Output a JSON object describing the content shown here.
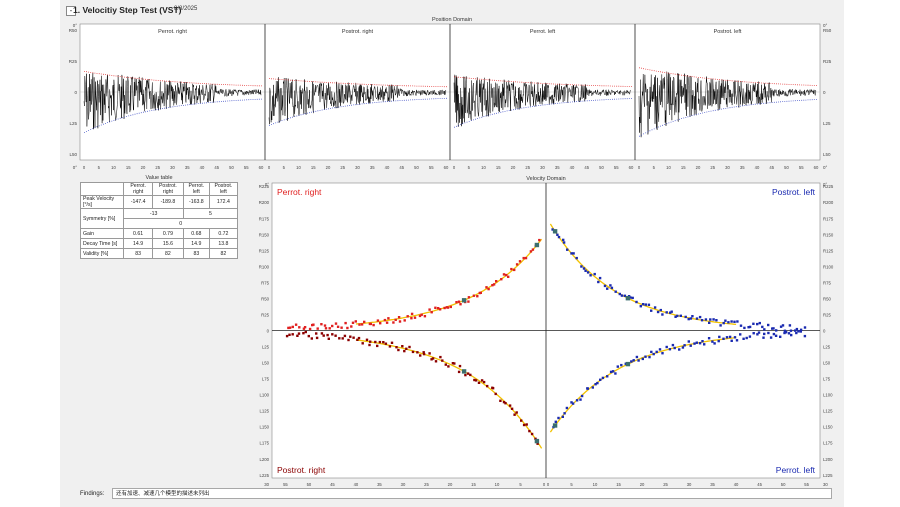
{
  "header": {
    "collapse_glyph": "-",
    "title": "1. Velocitiy Step Test (VST)",
    "date": "8/8/2025"
  },
  "position_domain": {
    "title": "Position Domain",
    "top_label": "0°",
    "bottom_label": "0°",
    "y_labels": [
      "R50",
      "R25",
      "0",
      "L25",
      "L50"
    ],
    "x_ticks": [
      "0",
      "5",
      "10",
      "15",
      "20",
      "25",
      "30",
      "35",
      "40",
      "45",
      "50",
      "55",
      "60"
    ],
    "panels": [
      "Perrot. right",
      "Postrot. right",
      "Perrot. left",
      "Postrot. left"
    ],
    "y_range": [
      -50,
      50
    ],
    "x_range": [
      0,
      60
    ]
  },
  "value_table": {
    "title": "Value table",
    "headers": [
      "",
      "Perrot. right",
      "Postrot. right",
      "Perrot. left",
      "Postrot. left"
    ],
    "peak_velocity": {
      "label": "Peak Velocity [°/s]",
      "values": [
        "-147.4",
        "-189.8",
        "-163.8",
        "172.4"
      ]
    },
    "symmetry_1": {
      "label": "Symmetry [%]",
      "values": [
        "-13",
        "5"
      ]
    },
    "symmetry_2": {
      "value": "0"
    },
    "gain": {
      "label": "Gain",
      "values": [
        "0.61",
        "0.79",
        "0.68",
        "0.72"
      ]
    },
    "decay_time": {
      "label": "Decay Time [s]",
      "values": [
        "14.9",
        "15.6",
        "14.9",
        "13.8"
      ]
    },
    "validity": {
      "label": "Validity [%]",
      "values": [
        "83",
        "82",
        "83",
        "82"
      ]
    }
  },
  "velocity_domain": {
    "title": "Velocity Domain",
    "top_label": "0°",
    "bottom_left_label": "30",
    "bottom_right_label": "30",
    "y_labels": [
      "R225",
      "R200",
      "R175",
      "R150",
      "R125",
      "R100",
      "R75",
      "R50",
      "R25",
      "0",
      "L25",
      "L50",
      "L75",
      "L100",
      "L125",
      "L150",
      "L175",
      "L200",
      "L225"
    ],
    "x_ticks_left": [
      "55",
      "50",
      "45",
      "40",
      "35",
      "30",
      "25",
      "20",
      "15",
      "10",
      "5",
      "0"
    ],
    "x_ticks_right": [
      "0",
      "5",
      "10",
      "15",
      "20",
      "25",
      "30",
      "35",
      "40",
      "45",
      "50",
      "55"
    ],
    "quadrant_labels": {
      "top_left": "Perrot. right",
      "top_right": "Postrot. left",
      "bottom_left": "Postrot. right",
      "bottom_right": "Perrot. left"
    },
    "colors": {
      "right": "#e02020",
      "left": "#1a2ab0",
      "dark_red": "#8b0000",
      "fit": "#f2c200",
      "peak_marker": "#3b6e6e"
    }
  },
  "chart_data": {
    "type": "scatter",
    "title": "Velocity Domain",
    "ylim": [
      -230,
      230
    ],
    "xlim": [
      0,
      60
    ],
    "series": [
      {
        "name": "Perrot. right",
        "peak": -147.4,
        "decay": 14.9
      },
      {
        "name": "Postrot. right",
        "peak": -189.8,
        "decay": 15.6
      },
      {
        "name": "Perrot. left",
        "peak": -163.8,
        "decay": 14.9
      },
      {
        "name": "Postrot. left",
        "peak": 172.4,
        "decay": 13.8
      }
    ]
  },
  "findings": {
    "label": "Findings:",
    "text": "还有加速、减速几个模型的描述未列出"
  }
}
